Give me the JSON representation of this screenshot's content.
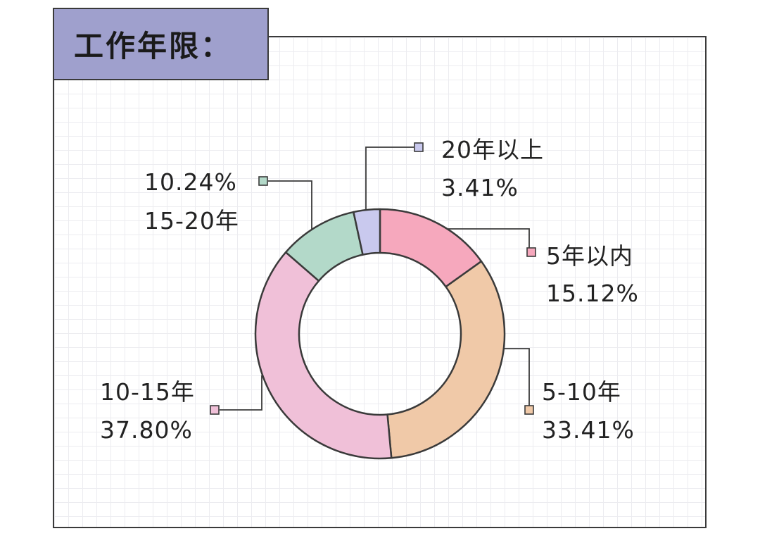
{
  "title": "工作年限：",
  "chart_data": {
    "type": "pie",
    "donut": true,
    "title": "工作年限：",
    "slices": [
      {
        "label": "5年以内",
        "value": 15.12,
        "value_label": "15.12%",
        "color": "#f6a8bd"
      },
      {
        "label": "5-10年",
        "value": 33.41,
        "value_label": "33.41%",
        "color": "#f0c9a8"
      },
      {
        "label": "10-15年",
        "value": 37.8,
        "value_label": "37.80%",
        "color": "#f0c0d8"
      },
      {
        "label": "15-20年",
        "value": 10.24,
        "value_label": "10.24%",
        "color": "#b3d9c9"
      },
      {
        "label": "20年以上",
        "value": 3.41,
        "value_label": "3.41%",
        "color": "#c9c9ee"
      }
    ]
  }
}
